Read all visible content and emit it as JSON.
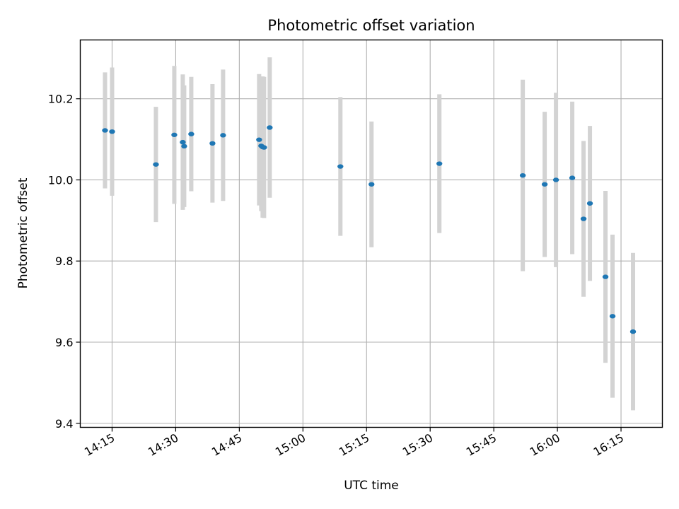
{
  "chart_data": {
    "type": "scatter",
    "title": "Photometric offset variation",
    "xlabel": "UTC time",
    "ylabel": "Photometric offset",
    "x_tick_labels": [
      "14:15",
      "14:30",
      "14:45",
      "15:00",
      "15:15",
      "15:30",
      "15:45",
      "16:00",
      "16:15"
    ],
    "x_tick_values": [
      "14:15",
      "14:30",
      "14:45",
      "15:00",
      "15:15",
      "15:30",
      "15:45",
      "16:00",
      "16:15"
    ],
    "y_tick_labels": [
      "9.4",
      "9.6",
      "9.8",
      "10.0",
      "10.2"
    ],
    "y_tick_values": [
      9.4,
      9.6,
      9.8,
      10.0,
      10.2
    ],
    "xlim": [
      "14:07:30",
      "16:24:45"
    ],
    "ylim": [
      9.39,
      10.345
    ],
    "grid": true,
    "colors": {
      "point": "#1f77b4",
      "errorbar": "#d3d3d3",
      "grid": "#b0b0b0",
      "axes": "#000000"
    },
    "points": [
      {
        "x": "14:13:20",
        "y": 10.122,
        "yerr": 0.143
      },
      {
        "x": "14:15:00",
        "y": 10.119,
        "yerr": 0.158
      },
      {
        "x": "14:25:20",
        "y": 10.038,
        "yerr": 0.142
      },
      {
        "x": "14:29:40",
        "y": 10.111,
        "yerr": 0.17
      },
      {
        "x": "14:31:40",
        "y": 10.093,
        "yerr": 0.167
      },
      {
        "x": "14:32:00",
        "y": 10.083,
        "yerr": 0.15
      },
      {
        "x": "14:33:40",
        "y": 10.113,
        "yerr": 0.141
      },
      {
        "x": "14:38:40",
        "y": 10.09,
        "yerr": 0.146
      },
      {
        "x": "14:41:10",
        "y": 10.11,
        "yerr": 0.162
      },
      {
        "x": "14:49:40",
        "y": 10.099,
        "yerr": 0.162
      },
      {
        "x": "14:50:10",
        "y": 10.084,
        "yerr": 0.161
      },
      {
        "x": "14:50:30",
        "y": 10.081,
        "yerr": 0.174
      },
      {
        "x": "14:50:50",
        "y": 10.08,
        "yerr": 0.174
      },
      {
        "x": "14:52:10",
        "y": 10.129,
        "yerr": 0.173
      },
      {
        "x": "15:08:50",
        "y": 10.033,
        "yerr": 0.171
      },
      {
        "x": "15:16:10",
        "y": 9.989,
        "yerr": 0.155
      },
      {
        "x": "15:32:10",
        "y": 10.04,
        "yerr": 0.171
      },
      {
        "x": "15:51:50",
        "y": 10.011,
        "yerr": 0.236
      },
      {
        "x": "15:57:00",
        "y": 9.989,
        "yerr": 0.179
      },
      {
        "x": "15:59:40",
        "y": 10.0,
        "yerr": 0.215
      },
      {
        "x": "16:03:30",
        "y": 10.005,
        "yerr": 0.188
      },
      {
        "x": "16:06:10",
        "y": 9.904,
        "yerr": 0.192
      },
      {
        "x": "16:07:40",
        "y": 9.942,
        "yerr": 0.191
      },
      {
        "x": "16:11:20",
        "y": 9.761,
        "yerr": 0.212
      },
      {
        "x": "16:13:00",
        "y": 9.664,
        "yerr": 0.201
      },
      {
        "x": "16:17:50",
        "y": 9.626,
        "yerr": 0.194
      }
    ]
  }
}
